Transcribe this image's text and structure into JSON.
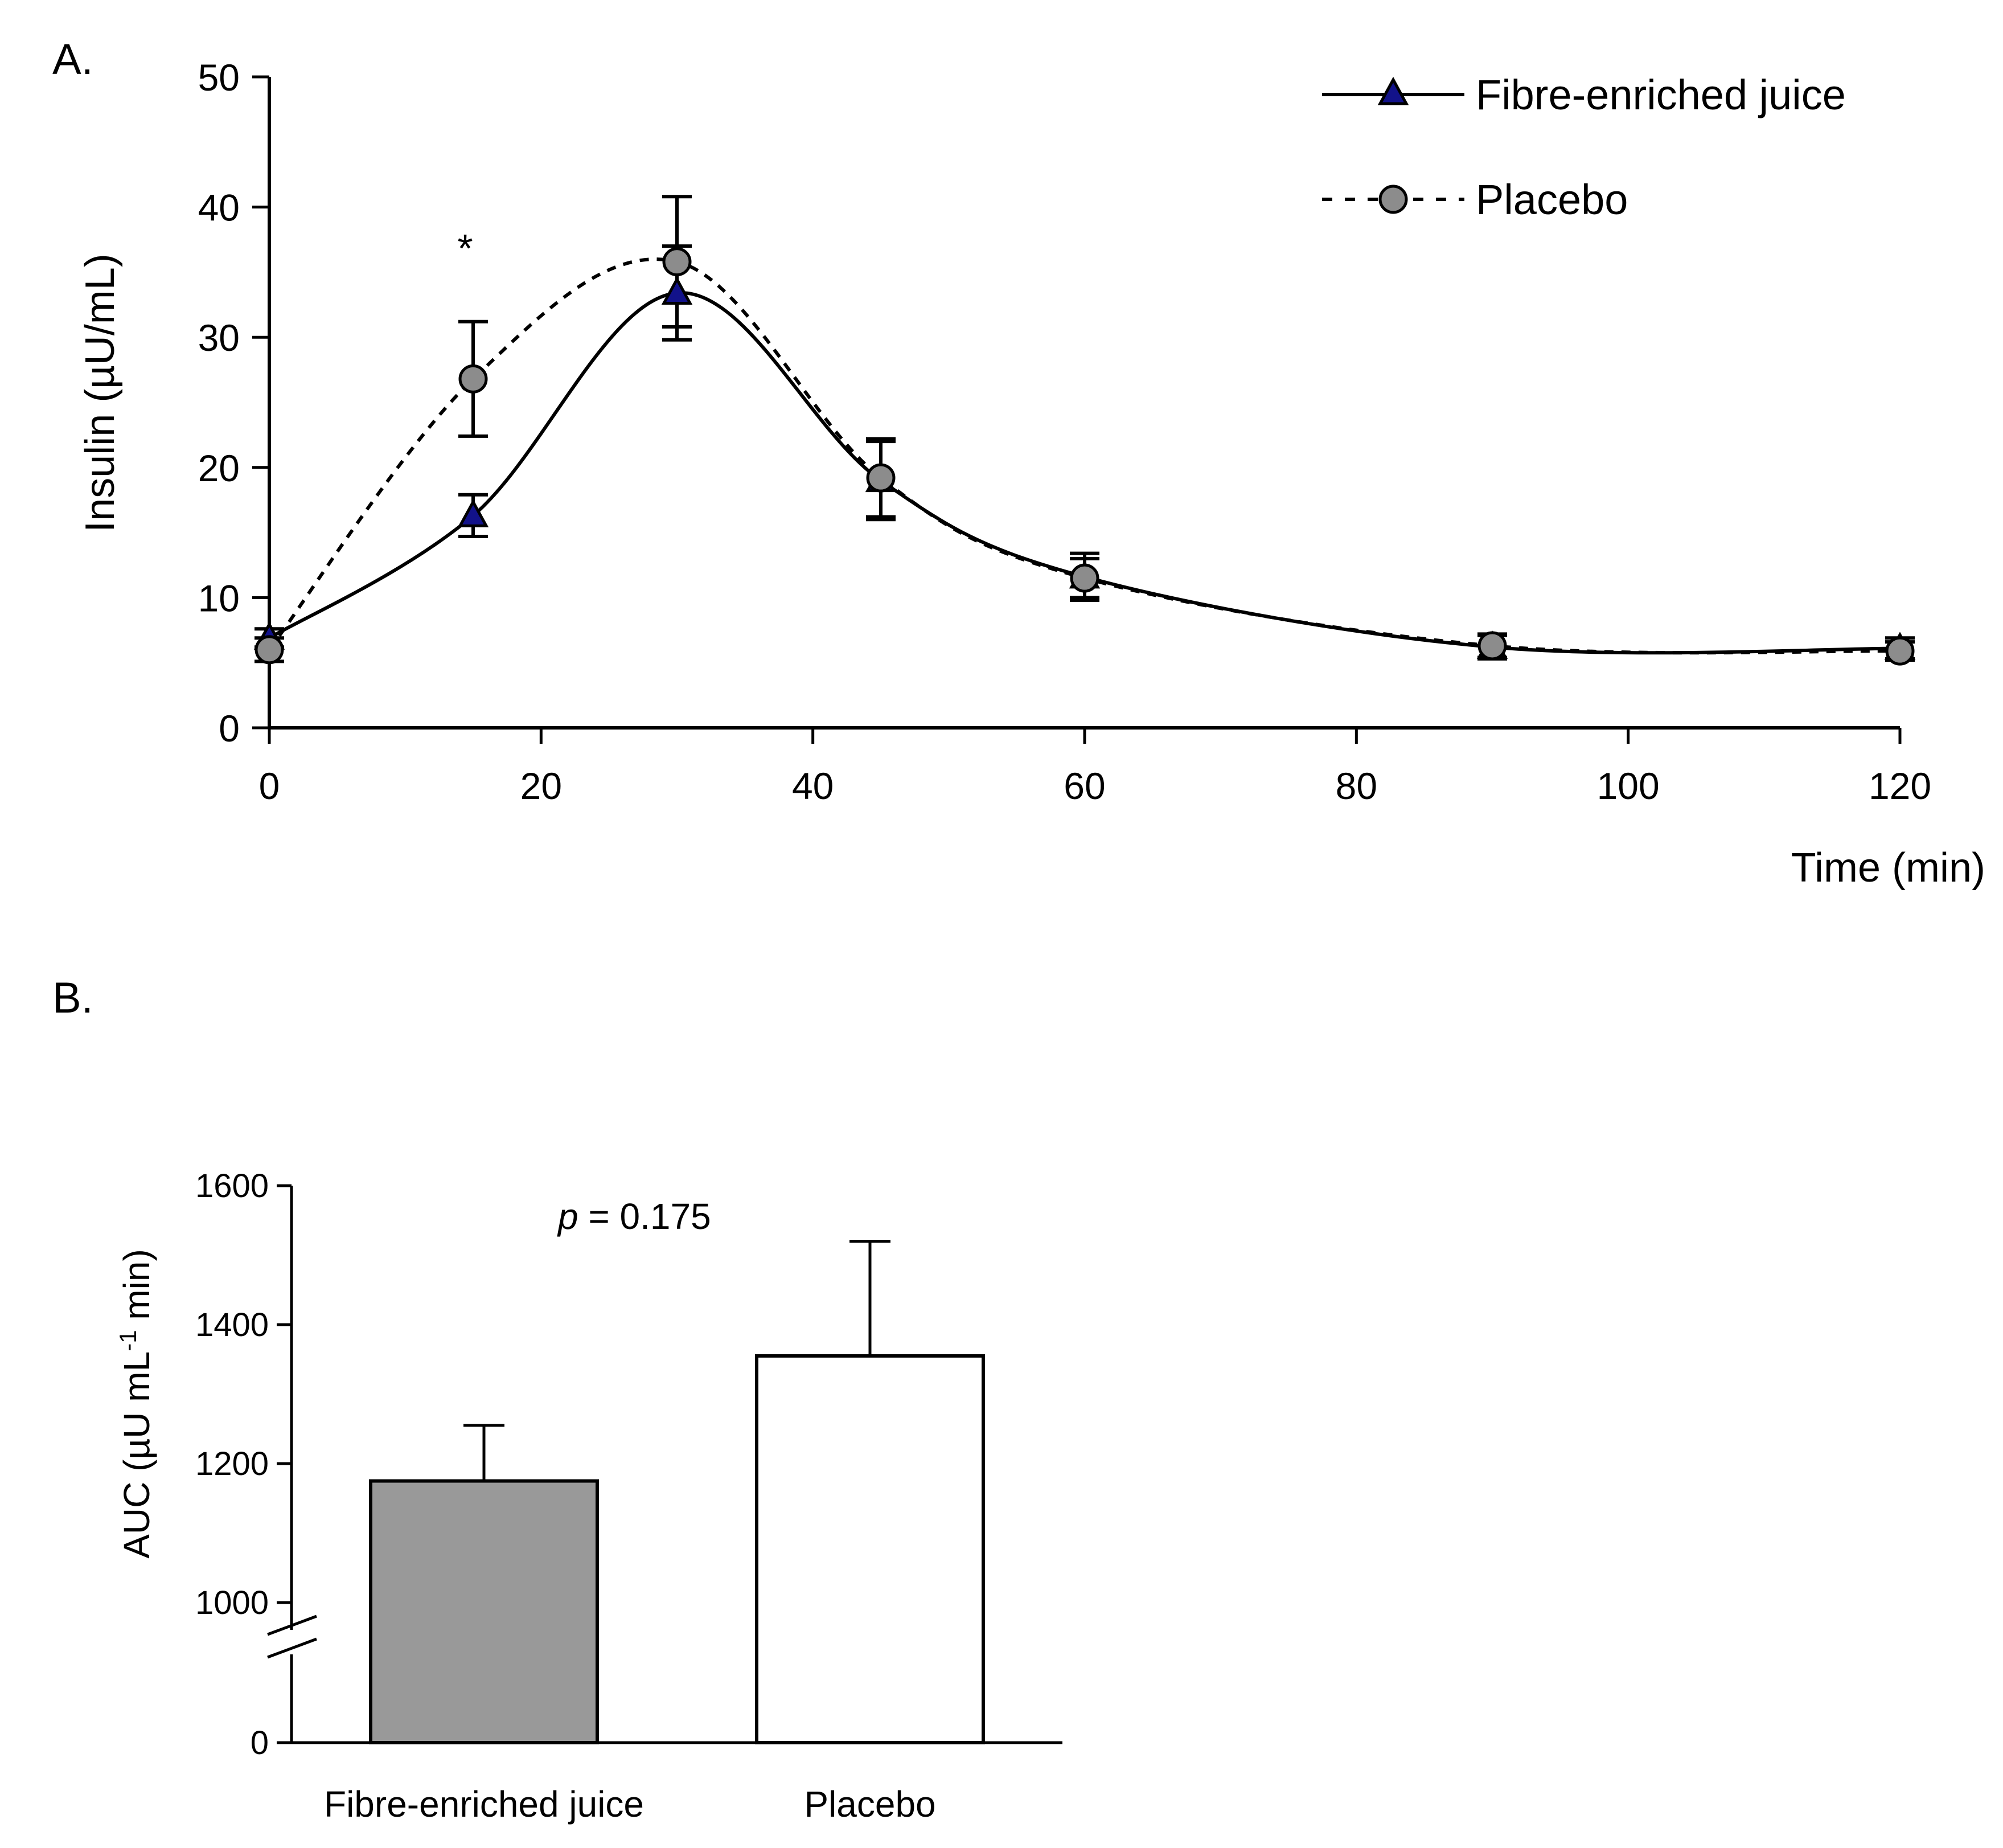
{
  "chart_data": [
    {
      "panel": "A.",
      "type": "line",
      "title": "",
      "xlabel": "Time (min)",
      "ylabel": "Insulin (µU/mL)",
      "xlim": [
        0,
        120
      ],
      "ylim": [
        0,
        50
      ],
      "x_ticks": [
        "0",
        "20",
        "40",
        "60",
        "80",
        "100",
        "120"
      ],
      "y_ticks": [
        "0",
        "10",
        "20",
        "30",
        "40",
        "50"
      ],
      "x": [
        0,
        15,
        30,
        45,
        60,
        90,
        120
      ],
      "series": [
        {
          "name": "Fibre-enriched juice",
          "line": "solid",
          "marker": "triangle",
          "marker_color": "#12128a",
          "values": [
            6.9,
            16.3,
            33.4,
            19.0,
            11.6,
            6.2,
            6.1
          ],
          "errors": [
            0.7,
            1.6,
            3.6,
            3.0,
            1.8,
            0.9,
            0.8
          ]
        },
        {
          "name": "Placebo",
          "line": "dotted",
          "marker": "circle",
          "marker_color": "#8c8c8c",
          "values": [
            6.0,
            26.8,
            35.8,
            19.2,
            11.5,
            6.3,
            5.9
          ],
          "errors": [
            0.9,
            4.4,
            5.0,
            3.0,
            1.5,
            0.9,
            0.7
          ]
        }
      ],
      "annotations": [
        {
          "text": "*",
          "x": 15,
          "y": 37
        }
      ],
      "legend_position": "top-right"
    },
    {
      "panel": "B.",
      "type": "bar",
      "title": "",
      "xlabel": "",
      "ylabel_main": "AUC (µU mL",
      "ylabel_sup": "-1",
      "ylabel_tail": " min)",
      "categories": [
        "Fibre-enriched juice",
        "Placebo"
      ],
      "values": [
        1175,
        1355
      ],
      "errors": [
        80,
        165
      ],
      "bar_colors": [
        "#999999",
        "#ffffff"
      ],
      "ylim": [
        0,
        1600
      ],
      "y_ticks": [
        "0",
        "1000",
        "1200",
        "1400",
        "1600"
      ],
      "axis_break": true,
      "annotation": {
        "italic": "p",
        "text": " = 0.175"
      }
    }
  ]
}
